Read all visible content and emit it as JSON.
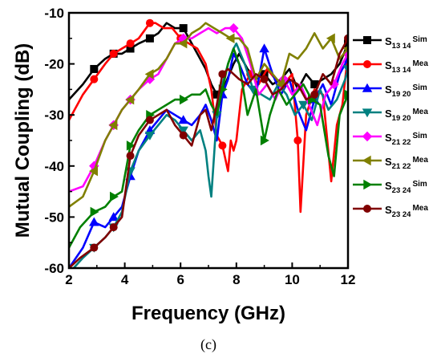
{
  "chart_data": {
    "type": "line",
    "title": "",
    "xlabel": "Frequency (GHz)",
    "ylabel": "Mutual Coupling (dB)",
    "xlim": [
      2,
      12
    ],
    "ylim": [
      -60,
      -10
    ],
    "xticks": [
      2,
      4,
      6,
      8,
      10,
      12
    ],
    "yticks": [
      -10,
      -20,
      -30,
      -40,
      -50,
      -60
    ],
    "grid": false,
    "legend_position": "right",
    "caption": "(c)",
    "series": [
      {
        "name": "S13 14 Sim",
        "label_main": "S",
        "label_sub": "13 14",
        "label_suffix": "Sim",
        "color": "#000000",
        "marker": "square",
        "x": [
          2,
          2.5,
          2.9,
          3.3,
          3.6,
          3.9,
          4.2,
          4.5,
          4.9,
          5.2,
          5.5,
          5.8,
          6.1,
          6.3,
          6.5,
          6.7,
          6.9,
          7.1,
          7.3,
          7.6,
          7.9,
          8.1,
          8.4,
          8.7,
          9.0,
          9.3,
          9.6,
          9.9,
          10.2,
          10.5,
          10.8,
          11.1,
          11.4,
          11.7,
          12
        ],
        "y": [
          -27,
          -24,
          -21,
          -19,
          -18,
          -18,
          -17,
          -16,
          -15,
          -14,
          -12,
          -13,
          -13,
          -15,
          -17,
          -19,
          -21,
          -24,
          -26,
          -24,
          -20,
          -18,
          -21,
          -23,
          -22,
          -24,
          -23,
          -21,
          -25,
          -22,
          -24,
          -23,
          -22,
          -20,
          -16
        ]
      },
      {
        "name": "S13 14 Mea",
        "label_main": "S",
        "label_sub": "13 14",
        "label_suffix": "Mea",
        "color": "#ff0000",
        "marker": "circle",
        "x": [
          2,
          2.5,
          2.9,
          3.3,
          3.6,
          3.9,
          4.2,
          4.5,
          4.9,
          5.1,
          5.4,
          5.7,
          6.0,
          6.3,
          6.6,
          6.9,
          7.1,
          7.3,
          7.5,
          7.7,
          7.8,
          7.9,
          8.0,
          8.2,
          8.5,
          8.8,
          9.1,
          9.4,
          9.7,
          10.0,
          10.2,
          10.3,
          10.5,
          10.8,
          11.1,
          11.4,
          11.6,
          11.8,
          12
        ],
        "y": [
          -31,
          -26,
          -23,
          -20,
          -18,
          -17,
          -16,
          -15,
          -12,
          -12,
          -13,
          -13,
          -15,
          -16,
          -17,
          -20,
          -25,
          -34,
          -36,
          -41,
          -35,
          -37,
          -35,
          -25,
          -22,
          -24,
          -21,
          -23,
          -24,
          -22,
          -35,
          -49,
          -30,
          -25,
          -26,
          -43,
          -32,
          -28,
          -18
        ]
      },
      {
        "name": "S19 20 Sim",
        "label_main": "S",
        "label_sub": "19 20",
        "label_suffix": "Sim",
        "color": "#0000ff",
        "marker": "triangle-up",
        "x": [
          2,
          2.5,
          2.9,
          3.3,
          3.6,
          3.9,
          4.2,
          4.5,
          4.9,
          5.2,
          5.5,
          5.8,
          6.1,
          6.4,
          6.7,
          6.9,
          7.1,
          7.3,
          7.5,
          7.7,
          7.9,
          8.1,
          8.4,
          8.7,
          9.0,
          9.3,
          9.6,
          9.9,
          10.2,
          10.5,
          10.8,
          11.1,
          11.4,
          11.7,
          12
        ],
        "y": [
          -60,
          -56,
          -51,
          -52,
          -50,
          -48,
          -42,
          -37,
          -33,
          -31,
          -29,
          -30,
          -31,
          -32,
          -30,
          -28,
          -31,
          -35,
          -26,
          -23,
          -18,
          -20,
          -24,
          -26,
          -17,
          -22,
          -26,
          -23,
          -29,
          -33,
          -27,
          -24,
          -28,
          -22,
          -19
        ]
      },
      {
        "name": "S19 20 Mea",
        "label_main": "S",
        "label_sub": "19 20",
        "label_suffix": "Mea",
        "color": "#008080",
        "marker": "triangle-down",
        "x": [
          2,
          2.5,
          2.9,
          3.3,
          3.6,
          3.9,
          4.2,
          4.5,
          4.9,
          5.2,
          5.5,
          5.8,
          6.1,
          6.4,
          6.7,
          6.9,
          7.0,
          7.1,
          7.3,
          7.5,
          7.7,
          7.9,
          8.0,
          8.3,
          8.6,
          8.9,
          9.2,
          9.5,
          9.8,
          10.1,
          10.4,
          10.7,
          11.0,
          11.3,
          11.6,
          11.9,
          12
        ],
        "y": [
          -61,
          -58,
          -56,
          -54,
          -52,
          -49,
          -41,
          -37,
          -34,
          -32,
          -30,
          -31,
          -33,
          -35,
          -33,
          -37,
          -42,
          -46,
          -30,
          -24,
          -20,
          -17,
          -16,
          -20,
          -25,
          -26,
          -27,
          -24,
          -26,
          -30,
          -28,
          -31,
          -25,
          -29,
          -27,
          -23,
          -21
        ]
      },
      {
        "name": "S21 22 Sim",
        "label_main": "S",
        "label_sub": "21 22",
        "label_suffix": "Sim",
        "color": "#ff00ff",
        "marker": "diamond",
        "x": [
          2,
          2.5,
          2.9,
          3.3,
          3.6,
          3.9,
          4.2,
          4.5,
          4.9,
          5.2,
          5.5,
          5.8,
          6.1,
          6.4,
          6.7,
          7.0,
          7.3,
          7.6,
          7.9,
          8.2,
          8.5,
          8.8,
          9.1,
          9.4,
          9.7,
          10.0,
          10.3,
          10.6,
          10.9,
          11.2,
          11.5,
          11.8,
          12
        ],
        "y": [
          -45,
          -44,
          -40,
          -35,
          -32,
          -29,
          -27,
          -25,
          -23,
          -22,
          -19,
          -16,
          -15,
          -15,
          -14,
          -13,
          -14,
          -13,
          -13,
          -15,
          -20,
          -26,
          -24,
          -27,
          -23,
          -26,
          -24,
          -28,
          -32,
          -26,
          -24,
          -20,
          -18
        ]
      },
      {
        "name": "S21 22 Mea",
        "label_main": "S",
        "label_sub": "21 22",
        "label_suffix": "Mea",
        "color": "#808000",
        "marker": "triangle-left",
        "x": [
          2,
          2.5,
          2.9,
          3.3,
          3.6,
          3.9,
          4.2,
          4.5,
          4.9,
          5.2,
          5.5,
          5.8,
          6.1,
          6.4,
          6.7,
          6.9,
          7.2,
          7.5,
          7.8,
          8.1,
          8.4,
          8.7,
          9.0,
          9.3,
          9.6,
          9.9,
          10.2,
          10.5,
          10.8,
          11.1,
          11.4,
          11.7,
          12
        ],
        "y": [
          -48,
          -46,
          -41,
          -35,
          -32,
          -29,
          -27,
          -25,
          -22,
          -21,
          -19,
          -16,
          -16,
          -14,
          -13,
          -12,
          -13,
          -14,
          -15,
          -15,
          -17,
          -23,
          -20,
          -22,
          -24,
          -18,
          -19,
          -17,
          -14,
          -17,
          -15,
          -19,
          -17
        ]
      },
      {
        "name": "S23 24 Sim",
        "label_main": "S",
        "label_sub": "23 24",
        "label_suffix": "Sim",
        "color": "#008000",
        "marker": "triangle-right",
        "x": [
          2,
          2.4,
          2.9,
          3.3,
          3.6,
          3.9,
          4.2,
          4.5,
          4.9,
          5.2,
          5.5,
          5.8,
          6.1,
          6.4,
          6.7,
          6.9,
          7.1,
          7.3,
          7.5,
          7.7,
          7.9,
          8.1,
          8.4,
          8.7,
          9.0,
          9.2,
          9.5,
          9.8,
          10.1,
          10.4,
          10.7,
          11.0,
          11.3,
          11.5,
          11.7,
          12
        ],
        "y": [
          -56,
          -52,
          -49,
          -48,
          -46,
          -45,
          -36,
          -33,
          -30,
          -29,
          -28,
          -27,
          -27,
          -26,
          -26,
          -25,
          -28,
          -30,
          -25,
          -20,
          -17,
          -20,
          -30,
          -25,
          -35,
          -30,
          -25,
          -28,
          -26,
          -24,
          -27,
          -28,
          -38,
          -42,
          -30,
          -26
        ]
      },
      {
        "name": "S23 24 Mea",
        "label_main": "S",
        "label_sub": "23 24",
        "label_suffix": "Mea",
        "color": "#800000",
        "marker": "circle",
        "x": [
          2,
          2.4,
          2.9,
          3.3,
          3.6,
          3.9,
          4.2,
          4.5,
          4.9,
          5.2,
          5.5,
          5.8,
          6.1,
          6.4,
          6.7,
          6.9,
          7.1,
          7.3,
          7.5,
          7.7,
          7.9,
          8.1,
          8.4,
          8.7,
          9.0,
          9.3,
          9.6,
          9.9,
          10.2,
          10.5,
          10.8,
          11.1,
          11.4,
          11.7,
          12
        ],
        "y": [
          -60,
          -58,
          -56,
          -54,
          -52,
          -50,
          -38,
          -34,
          -31,
          -30,
          -29,
          -32,
          -34,
          -36,
          -30,
          -29,
          -33,
          -28,
          -22,
          -21,
          -22,
          -23,
          -24,
          -22,
          -23,
          -26,
          -25,
          -23,
          -24,
          -27,
          -26,
          -22,
          -24,
          -18,
          -15
        ]
      }
    ]
  }
}
